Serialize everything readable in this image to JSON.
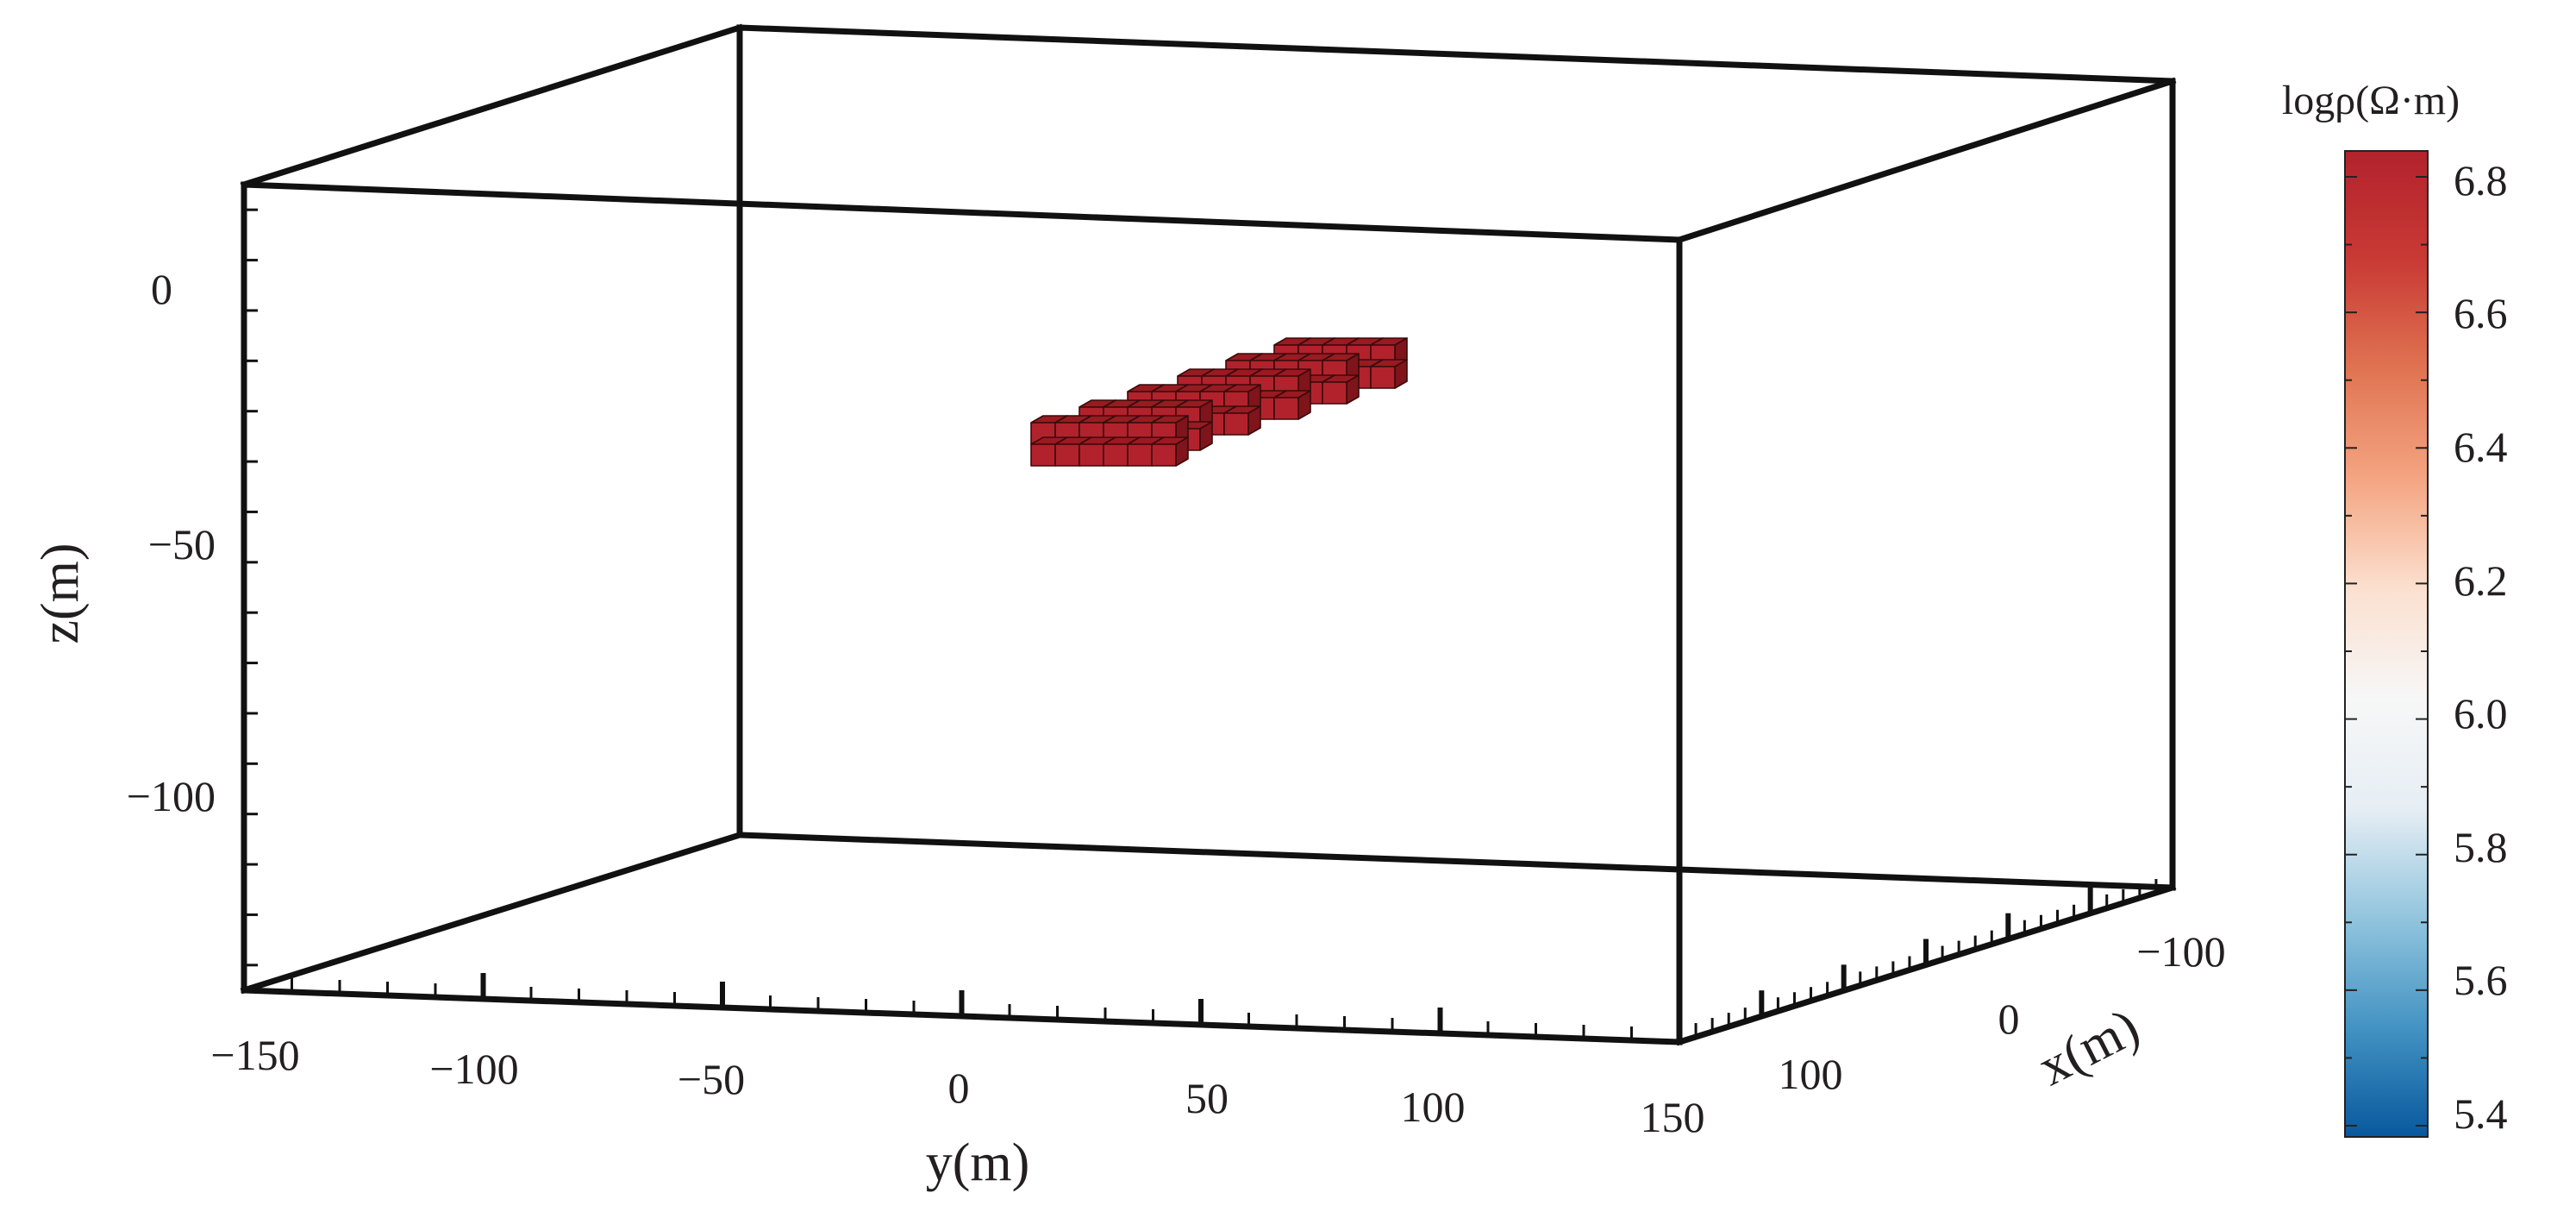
{
  "chart_data": {
    "type": "3d-voxel",
    "title": "",
    "axes": {
      "x": {
        "label": "x(m)",
        "ticks": [
          "−100",
          "0",
          "100"
        ],
        "range": [
          -100,
          100
        ]
      },
      "y": {
        "label": "y(m)",
        "ticks": [
          "−150",
          "−100",
          "−50",
          "0",
          "50",
          "100",
          "150"
        ],
        "range": [
          -150,
          150
        ]
      },
      "z": {
        "label": "z(m)",
        "ticks": [
          "0",
          "−50",
          "−100"
        ],
        "range": [
          -140,
          20
        ]
      }
    },
    "colorbar": {
      "title": "logρ(Ω·m)",
      "ticks": [
        "6.8",
        "6.6",
        "6.4",
        "6.2",
        "6.0",
        "5.8",
        "5.6",
        "5.4"
      ],
      "range": [
        5.4,
        6.8
      ],
      "colors": [
        "#08589e",
        "#4393c3",
        "#92c5de",
        "#e6eef4",
        "#f7f7f7",
        "#fbe0cf",
        "#f4a582",
        "#e07452",
        "#c93a35",
        "#b2222c"
      ]
    },
    "anomaly": {
      "log_resistivity": 6.8,
      "color": "#b2222c",
      "z_range": [
        -35,
        -10
      ],
      "y_range": [
        10,
        95
      ],
      "x_range": [
        -40,
        40
      ]
    },
    "grid": false
  }
}
